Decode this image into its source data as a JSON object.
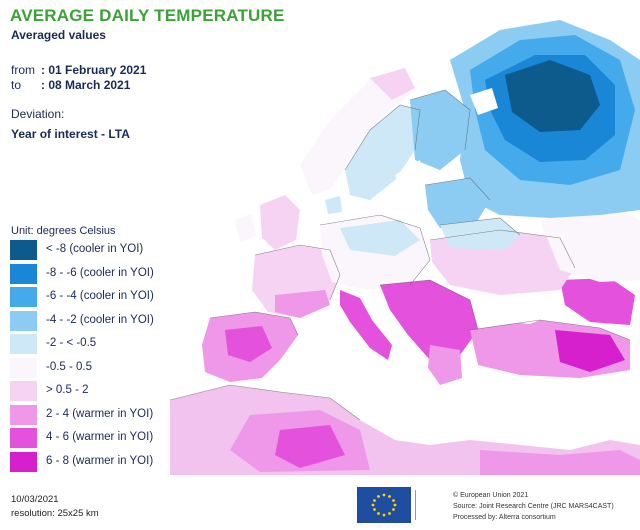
{
  "title": "AVERAGE DAILY TEMPERATURE",
  "subtitle": "Averaged values",
  "period": {
    "from_label": "from",
    "from_value": ": 01 February 2021",
    "to_label": "to",
    "to_value": ": 08 March 2021"
  },
  "deviation_label": "Deviation:",
  "deviation_value": "Year of interest - LTA",
  "legend": {
    "unit": "Unit: degrees Celsius",
    "items": [
      {
        "label": "< -8 (cooler in YOI)",
        "color": "#0d5a8c"
      },
      {
        "label": "-8 - -6 (cooler in YOI)",
        "color": "#1a86d6"
      },
      {
        "label": "-6 - -4 (cooler in YOI)",
        "color": "#45aaec"
      },
      {
        "label": "-4 - -2 (cooler in YOI)",
        "color": "#8cccf3"
      },
      {
        "label": "-2 - < -0.5",
        "color": "#cfe8f8"
      },
      {
        "label": "-0.5 - 0.5",
        "color": "#fbf6fc"
      },
      {
        "label": "> 0.5 - 2",
        "color": "#f7d3f3"
      },
      {
        "label": "2 - 4 (warmer in YOI)",
        "color": "#ef97e8"
      },
      {
        "label": "4 - 6 (warmer in YOI)",
        "color": "#e451dc"
      },
      {
        "label": "6 - 8 (warmer in YOI)",
        "color": "#d61fcd"
      }
    ]
  },
  "footer": {
    "date": "10/03/2021",
    "resolution": "resolution: 25x25 km",
    "credit_1": "© European Union 2021",
    "credit_2": "Source: Joint Research Centre (JRC MARS4CAST)",
    "credit_3": "Processed by: Alterra consortium"
  },
  "colors": {
    "title": "#3aa335",
    "text": "#1a2a55",
    "sea": "#ffffff",
    "border": "#555555"
  }
}
